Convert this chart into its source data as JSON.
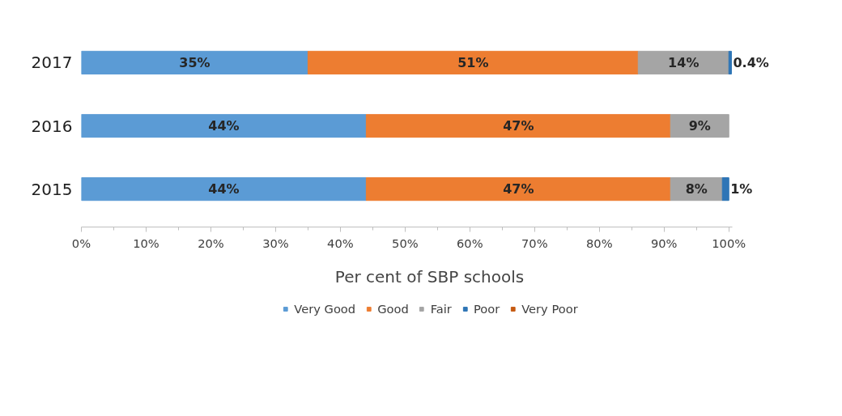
{
  "chart_data": {
    "type": "bar",
    "orientation": "horizontal",
    "stacked": true,
    "xlabel": "Per cent of SBP schools",
    "categories": [
      "2017",
      "2016",
      "2015"
    ],
    "series": [
      {
        "name": "Very Good",
        "color": "#5b9bd5",
        "values": [
          35,
          44,
          44
        ],
        "value_labels": [
          "35%",
          "44%",
          "44%"
        ]
      },
      {
        "name": "Good",
        "color": "#ed7d31",
        "values": [
          51,
          47,
          47
        ],
        "value_labels": [
          "51%",
          "47%",
          "47%"
        ]
      },
      {
        "name": "Fair",
        "color": "#a5a5a5",
        "values": [
          14,
          9,
          8
        ],
        "value_labels": [
          "14%",
          "9%",
          "8%"
        ]
      },
      {
        "name": "Poor",
        "color": "#2e75b6",
        "values": [
          0.4,
          null,
          1
        ],
        "value_labels": [
          "0.4%",
          null,
          "1%"
        ]
      },
      {
        "name": "Very Poor",
        "color": "#c55a11",
        "values": [
          null,
          null,
          null
        ]
      }
    ],
    "xlim": [
      0,
      100.5
    ],
    "xticks": [
      {
        "value": 0,
        "label": "0%"
      },
      {
        "value": 10,
        "label": "10%"
      },
      {
        "value": 20,
        "label": "20%"
      },
      {
        "value": 30,
        "label": "30%"
      },
      {
        "value": 40,
        "label": "40%"
      },
      {
        "value": 50,
        "label": "50%"
      },
      {
        "value": 60,
        "label": "60%"
      },
      {
        "value": 70,
        "label": "70%"
      },
      {
        "value": 80,
        "label": "80%"
      },
      {
        "value": 90,
        "label": "90%"
      },
      {
        "value": 100,
        "label": "100%"
      }
    ],
    "grid": false,
    "legend": "bottom"
  }
}
